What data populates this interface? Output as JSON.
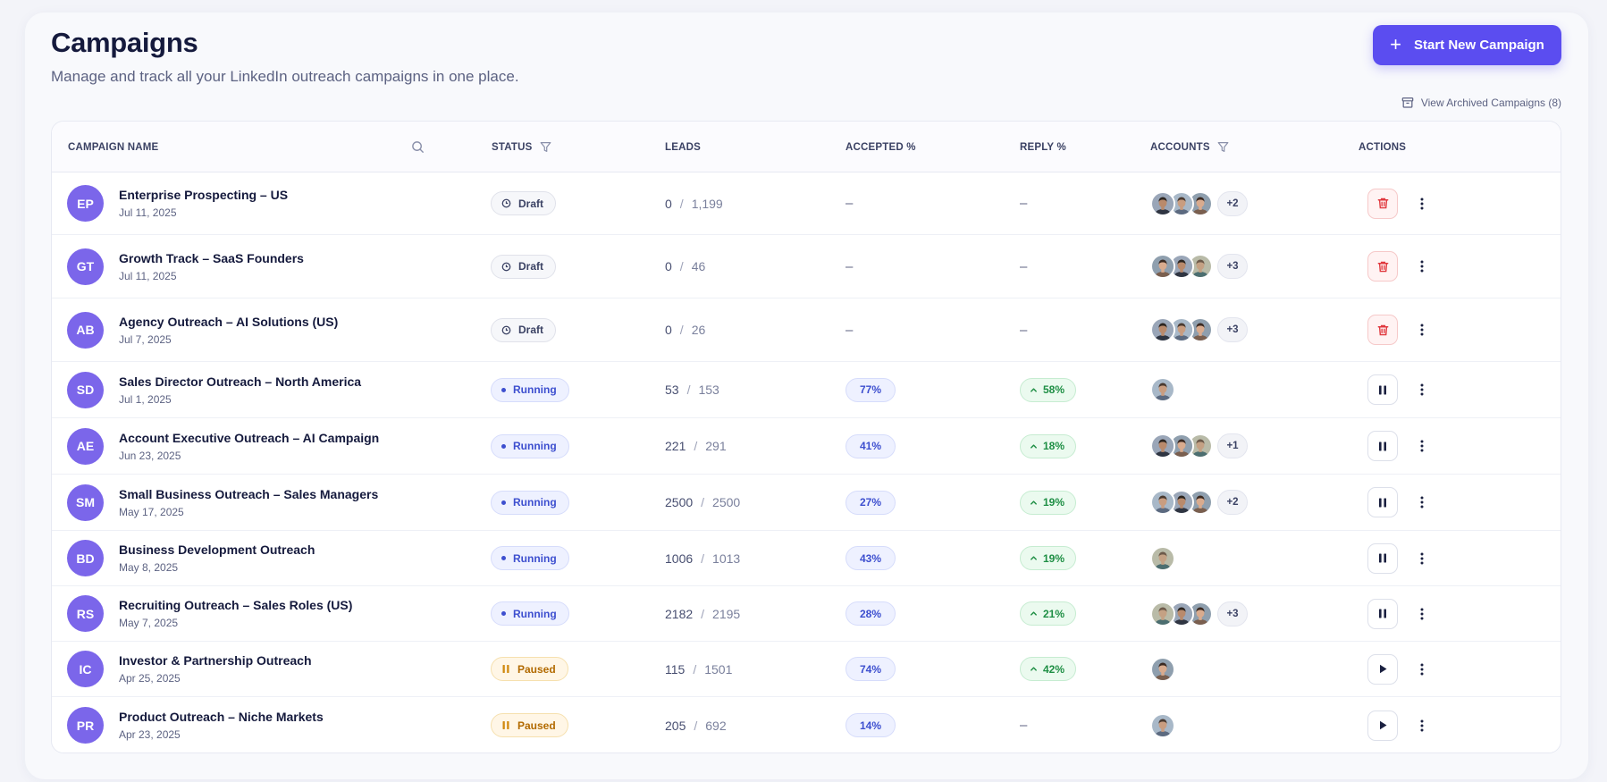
{
  "header": {
    "title": "Campaigns",
    "subtitle": "Manage and track all your LinkedIn outreach campaigns in one place.",
    "new_button_label": "Start New Campaign",
    "archived_link": "View Archived Campaigns (8)"
  },
  "table": {
    "columns": {
      "name": "CAMPAIGN NAME",
      "status": "STATUS",
      "leads": "LEADS",
      "accepted": "ACCEPTED %",
      "reply": "REPLY %",
      "accounts": "ACCOUNTS",
      "actions": "ACTIONS"
    },
    "rows": [
      {
        "initials": "EP",
        "name": "Enterprise Prospecting – US",
        "date": "Jul 11, 2025",
        "status": "Draft",
        "leads_done": "0",
        "leads_total": "1,199",
        "accepted": "–",
        "reply": "–",
        "accounts": [
          "a1",
          "a2",
          "a3"
        ],
        "more": "+2",
        "action": "delete"
      },
      {
        "initials": "GT",
        "name": "Growth Track – SaaS Founders",
        "date": "Jul 11, 2025",
        "status": "Draft",
        "leads_done": "0",
        "leads_total": "46",
        "accepted": "–",
        "reply": "–",
        "accounts": [
          "a3",
          "a1",
          "a4"
        ],
        "more": "+3",
        "action": "delete"
      },
      {
        "initials": "AB",
        "name": "Agency Outreach – AI Solutions (US)",
        "date": "Jul 7, 2025",
        "status": "Draft",
        "leads_done": "0",
        "leads_total": "26",
        "accepted": "–",
        "reply": "–",
        "accounts": [
          "a1",
          "a2",
          "a3"
        ],
        "more": "+3",
        "action": "delete"
      },
      {
        "initials": "SD",
        "name": "Sales Director Outreach – North America",
        "date": "Jul 1, 2025",
        "status": "Running",
        "leads_done": "53",
        "leads_total": "153",
        "accepted": "77%",
        "reply": "58%",
        "accounts": [
          "a2"
        ],
        "more": "",
        "action": "pause"
      },
      {
        "initials": "AE",
        "name": "Account Executive Outreach – AI Campaign",
        "date": "Jun 23, 2025",
        "status": "Running",
        "leads_done": "221",
        "leads_total": "291",
        "accepted": "41%",
        "reply": "18%",
        "accounts": [
          "a1",
          "a3",
          "a4"
        ],
        "more": "+1",
        "action": "pause"
      },
      {
        "initials": "SM",
        "name": "Small Business Outreach – Sales Managers",
        "date": "May 17, 2025",
        "status": "Running",
        "leads_done": "2500",
        "leads_total": "2500",
        "accepted": "27%",
        "reply": "19%",
        "accounts": [
          "a2",
          "a1",
          "a3"
        ],
        "more": "+2",
        "action": "pause"
      },
      {
        "initials": "BD",
        "name": "Business Development Outreach",
        "date": "May 8, 2025",
        "status": "Running",
        "leads_done": "1006",
        "leads_total": "1013",
        "accepted": "43%",
        "reply": "19%",
        "accounts": [
          "a4"
        ],
        "more": "",
        "action": "pause"
      },
      {
        "initials": "RS",
        "name": "Recruiting Outreach – Sales Roles (US)",
        "date": "May 7, 2025",
        "status": "Running",
        "leads_done": "2182",
        "leads_total": "2195",
        "accepted": "28%",
        "reply": "21%",
        "accounts": [
          "a4",
          "a1",
          "a3"
        ],
        "more": "+3",
        "action": "pause"
      },
      {
        "initials": "IC",
        "name": "Investor & Partnership Outreach",
        "date": "Apr 25, 2025",
        "status": "Paused",
        "leads_done": "115",
        "leads_total": "1501",
        "accepted": "74%",
        "reply": "42%",
        "accounts": [
          "a3"
        ],
        "more": "",
        "action": "play"
      },
      {
        "initials": "PR",
        "name": "Product Outreach – Niche Markets",
        "date": "Apr 23, 2025",
        "status": "Paused",
        "leads_done": "205",
        "leads_total": "692",
        "accepted": "14%",
        "reply": "–",
        "accounts": [
          "a2"
        ],
        "more": "",
        "action": "play"
      }
    ]
  },
  "colors": {
    "accent": "#5b4df0",
    "monogram": "#7b66ea",
    "running": "#3d4fcf",
    "paused": "#b26a00",
    "reply_green": "#1f8f45",
    "delete_red": "#e0383e"
  },
  "icons": {
    "new_button": "plus-icon",
    "archived": "archive-box-icon",
    "name_search": "search-icon",
    "status_filter": "filter-icon",
    "accounts_filter": "filter-icon",
    "draft_status": "clock-icon",
    "paused_status": "pause-icon",
    "reply_trend": "arrow-up-icon",
    "delete_action": "trash-icon",
    "pause_action": "pause-icon",
    "play_action": "play-icon",
    "more_action": "more-vertical-icon"
  }
}
